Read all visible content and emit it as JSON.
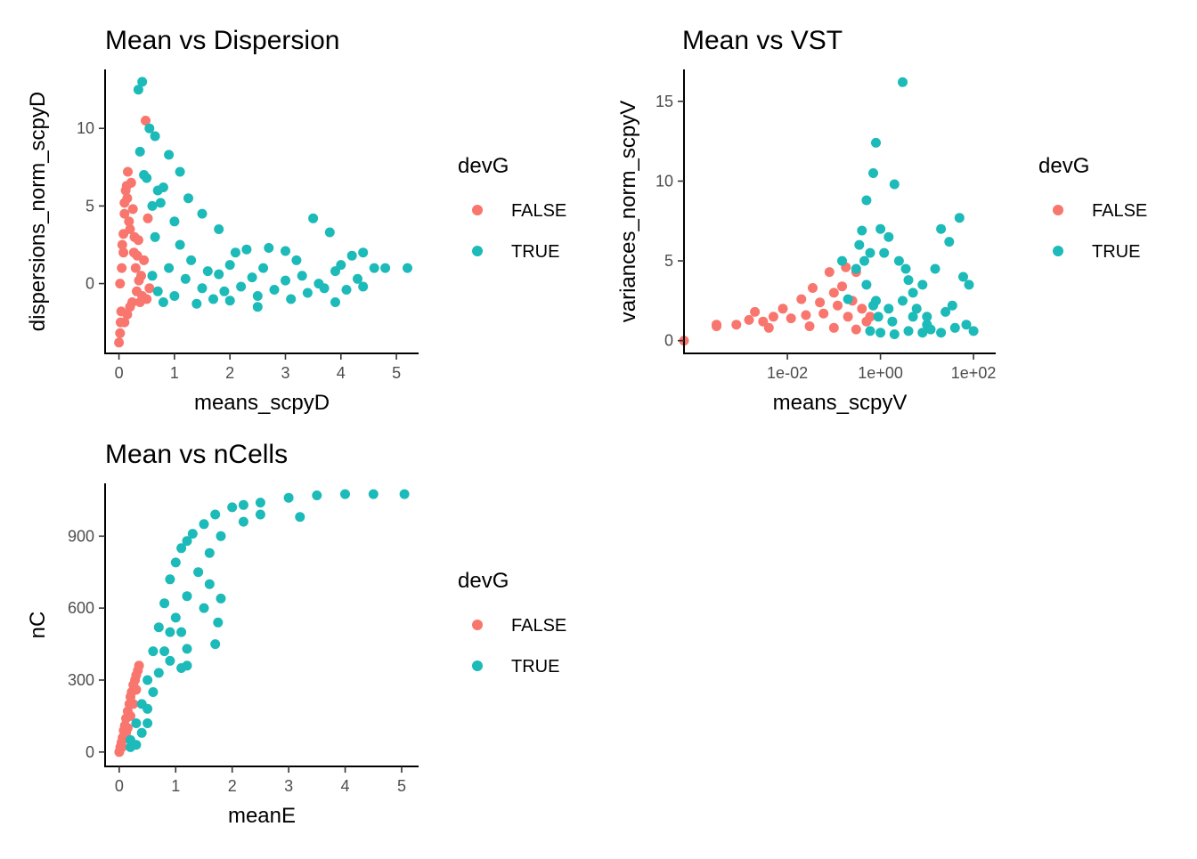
{
  "colors": {
    "FALSE": "#F8766D",
    "TRUE": "#1CBAB8"
  },
  "chart_data": [
    {
      "type": "scatter",
      "title": "Mean vs Dispersion",
      "xlabel": "means_scpyD",
      "ylabel": "dispersions_norm_scpyD",
      "xlim": [
        -0.25,
        5.4
      ],
      "ylim": [
        -4.5,
        13.8
      ],
      "xticks": [
        0,
        1,
        2,
        3,
        4,
        5
      ],
      "xtick_labels": [
        "0",
        "1",
        "2",
        "3",
        "4",
        "5"
      ],
      "yticks": [
        0,
        5,
        10
      ],
      "ytick_labels": [
        "0",
        "5",
        "10"
      ],
      "legend": {
        "title": "devG",
        "entries": [
          "FALSE",
          "TRUE"
        ],
        "position": "right"
      },
      "series": [
        {
          "name": "FALSE",
          "points": [
            [
              0.0,
              -3.8
            ],
            [
              0.02,
              -3.2
            ],
            [
              0.03,
              -2.5
            ],
            [
              0.04,
              -1.8
            ],
            [
              0.02,
              0.0
            ],
            [
              0.05,
              1.0
            ],
            [
              0.06,
              2.5
            ],
            [
              0.08,
              3.2
            ],
            [
              0.1,
              4.5
            ],
            [
              0.1,
              5.2
            ],
            [
              0.12,
              6.0
            ],
            [
              0.14,
              6.3
            ],
            [
              0.15,
              5.5
            ],
            [
              0.16,
              7.2
            ],
            [
              0.18,
              4.0
            ],
            [
              0.2,
              3.5
            ],
            [
              0.22,
              6.5
            ],
            [
              0.25,
              4.8
            ],
            [
              0.27,
              2.0
            ],
            [
              0.3,
              1.0
            ],
            [
              0.32,
              -0.5
            ],
            [
              0.35,
              2.8
            ],
            [
              0.38,
              -1.2
            ],
            [
              0.4,
              0.5
            ],
            [
              0.42,
              -0.8
            ],
            [
              0.45,
              1.5
            ],
            [
              0.5,
              -1.0
            ],
            [
              0.52,
              4.2
            ],
            [
              0.55,
              -0.3
            ],
            [
              0.48,
              10.5
            ],
            [
              0.2,
              -1.5
            ],
            [
              0.15,
              -2.0
            ],
            [
              0.1,
              -2.5
            ],
            [
              0.08,
              2.0
            ],
            [
              0.28,
              3.0
            ],
            [
              0.33,
              1.8
            ],
            [
              0.24,
              -1.2
            ],
            [
              0.36,
              0.2
            ]
          ]
        },
        {
          "name": "TRUE",
          "points": [
            [
              0.35,
              12.5
            ],
            [
              0.42,
              13.0
            ],
            [
              0.55,
              10.0
            ],
            [
              0.38,
              8.5
            ],
            [
              0.45,
              7.0
            ],
            [
              0.65,
              9.5
            ],
            [
              0.7,
              6.0
            ],
            [
              0.8,
              6.2
            ],
            [
              0.9,
              8.3
            ],
            [
              1.1,
              7.2
            ],
            [
              1.25,
              5.5
            ],
            [
              0.5,
              6.8
            ],
            [
              0.6,
              5.0
            ],
            [
              0.75,
              5.2
            ],
            [
              1.0,
              4.0
            ],
            [
              1.5,
              4.5
            ],
            [
              1.8,
              3.5
            ],
            [
              2.1,
              2.0
            ],
            [
              2.3,
              2.2
            ],
            [
              2.7,
              2.3
            ],
            [
              3.0,
              2.1
            ],
            [
              3.2,
              1.5
            ],
            [
              3.5,
              4.2
            ],
            [
              3.8,
              3.3
            ],
            [
              4.0,
              1.2
            ],
            [
              4.2,
              1.8
            ],
            [
              4.4,
              2.0
            ],
            [
              4.6,
              1.0
            ],
            [
              4.8,
              1.0
            ],
            [
              5.2,
              1.0
            ],
            [
              0.6,
              0.5
            ],
            [
              0.7,
              -0.5
            ],
            [
              0.9,
              1.0
            ],
            [
              1.0,
              -0.8
            ],
            [
              1.2,
              0.3
            ],
            [
              1.3,
              1.5
            ],
            [
              1.5,
              -0.3
            ],
            [
              1.6,
              0.8
            ],
            [
              1.7,
              -1.0
            ],
            [
              1.8,
              0.6
            ],
            [
              1.9,
              -0.5
            ],
            [
              2.0,
              1.2
            ],
            [
              2.2,
              -0.2
            ],
            [
              2.4,
              0.4
            ],
            [
              2.5,
              -0.8
            ],
            [
              2.6,
              1.0
            ],
            [
              2.8,
              -0.4
            ],
            [
              3.0,
              0.2
            ],
            [
              3.1,
              -1.0
            ],
            [
              3.3,
              0.5
            ],
            [
              3.4,
              -0.6
            ],
            [
              3.6,
              0.0
            ],
            [
              3.7,
              -0.3
            ],
            [
              3.9,
              0.8
            ],
            [
              4.1,
              -0.4
            ],
            [
              4.3,
              0.3
            ],
            [
              4.4,
              -0.2
            ],
            [
              1.4,
              -1.3
            ],
            [
              2.5,
              -1.5
            ],
            [
              0.8,
              -1.2
            ],
            [
              1.1,
              2.5
            ],
            [
              0.65,
              3.0
            ],
            [
              2.0,
              -1.1
            ],
            [
              3.9,
              -1.2
            ]
          ]
        }
      ]
    },
    {
      "type": "scatter",
      "title": "Mean vs VST",
      "xlabel": "means_scpyV",
      "ylabel": "variances_norm_scpyV",
      "xscale": "log",
      "xlim": [
        6e-05,
        300
      ],
      "ylim": [
        -0.8,
        17
      ],
      "xticks": [
        0.01,
        1,
        100
      ],
      "xtick_labels": [
        "1e-02",
        "1e+00",
        "1e+02"
      ],
      "yticks": [
        0,
        5,
        10,
        15
      ],
      "ytick_labels": [
        "0",
        "5",
        "10",
        "15"
      ],
      "legend": {
        "title": "devG",
        "entries": [
          "FALSE",
          "TRUE"
        ],
        "position": "right"
      },
      "series": [
        {
          "name": "FALSE",
          "points": [
            [
              6e-05,
              0.0
            ],
            [
              0.0003,
              1.0
            ],
            [
              0.0003,
              0.9
            ],
            [
              0.0008,
              1.0
            ],
            [
              0.0015,
              1.3
            ],
            [
              0.002,
              1.8
            ],
            [
              0.003,
              1.2
            ],
            [
              0.005,
              1.5
            ],
            [
              0.008,
              2.0
            ],
            [
              0.012,
              1.4
            ],
            [
              0.02,
              2.6
            ],
            [
              0.025,
              1.6
            ],
            [
              0.035,
              3.3
            ],
            [
              0.05,
              2.4
            ],
            [
              0.06,
              1.7
            ],
            [
              0.08,
              4.3
            ],
            [
              0.1,
              3.0
            ],
            [
              0.12,
              2.2
            ],
            [
              0.15,
              3.4
            ],
            [
              0.18,
              4.6
            ],
            [
              0.2,
              1.5
            ],
            [
              0.25,
              2.5
            ],
            [
              0.3,
              4.3
            ],
            [
              0.4,
              2.0
            ],
            [
              0.5,
              1.2
            ],
            [
              0.6,
              1.5
            ],
            [
              0.03,
              0.9
            ],
            [
              0.1,
              0.8
            ],
            [
              0.3,
              0.7
            ],
            [
              0.004,
              0.8
            ]
          ]
        },
        {
          "name": "TRUE",
          "points": [
            [
              0.5,
              3.5
            ],
            [
              0.5,
              8.8
            ],
            [
              0.7,
              10.5
            ],
            [
              0.8,
              12.4
            ],
            [
              0.6,
              5.5
            ],
            [
              0.4,
              6.9
            ],
            [
              0.3,
              4.5
            ],
            [
              0.35,
              6.0
            ],
            [
              1.0,
              7.0
            ],
            [
              1.2,
              5.5
            ],
            [
              1.5,
              6.5
            ],
            [
              2.0,
              9.8
            ],
            [
              2.5,
              5.0
            ],
            [
              3.0,
              16.2
            ],
            [
              3.5,
              4.5
            ],
            [
              4.0,
              3.8
            ],
            [
              5.0,
              3.0
            ],
            [
              0.45,
              5.0
            ],
            [
              0.15,
              5.0
            ],
            [
              0.2,
              2.6
            ],
            [
              0.8,
              2.5
            ],
            [
              1.5,
              2.0
            ],
            [
              3.0,
              2.5
            ],
            [
              6.0,
              2.0
            ],
            [
              8.0,
              3.5
            ],
            [
              10.0,
              1.5
            ],
            [
              15.0,
              4.5
            ],
            [
              20.0,
              7.0
            ],
            [
              25.0,
              1.8
            ],
            [
              30.0,
              6.2
            ],
            [
              35.0,
              2.2
            ],
            [
              50.0,
              7.7
            ],
            [
              60.0,
              4.0
            ],
            [
              70.0,
              1.0
            ],
            [
              80.0,
              3.5
            ],
            [
              100.0,
              0.6
            ],
            [
              0.6,
              0.6
            ],
            [
              1.0,
              0.5
            ],
            [
              2.0,
              0.4
            ],
            [
              4.0,
              0.6
            ],
            [
              8.0,
              0.5
            ],
            [
              12.0,
              0.7
            ],
            [
              20.0,
              0.5
            ],
            [
              40.0,
              0.8
            ],
            [
              0.9,
              1.5
            ],
            [
              1.8,
              1.2
            ],
            [
              5.0,
              1.5
            ],
            [
              10.0,
              1.0
            ],
            [
              0.7,
              2.2
            ]
          ]
        }
      ]
    },
    {
      "type": "scatter",
      "title": "Mean vs nCells",
      "xlabel": "meanE",
      "ylabel": "nC",
      "xlim": [
        -0.25,
        5.3
      ],
      "ylim": [
        -60,
        1120
      ],
      "xticks": [
        0,
        1,
        2,
        3,
        4,
        5
      ],
      "xtick_labels": [
        "0",
        "1",
        "2",
        "3",
        "4",
        "5"
      ],
      "yticks": [
        0,
        300,
        600,
        900
      ],
      "ytick_labels": [
        "0",
        "300",
        "600",
        "900"
      ],
      "legend": {
        "title": "devG",
        "entries": [
          "FALSE",
          "TRUE"
        ],
        "position": "right"
      },
      "series": [
        {
          "name": "FALSE",
          "points": [
            [
              0.0,
              0
            ],
            [
              0.02,
              20
            ],
            [
              0.04,
              40
            ],
            [
              0.06,
              60
            ],
            [
              0.08,
              90
            ],
            [
              0.1,
              110
            ],
            [
              0.12,
              140
            ],
            [
              0.15,
              170
            ],
            [
              0.18,
              200
            ],
            [
              0.2,
              230
            ],
            [
              0.22,
              250
            ],
            [
              0.25,
              280
            ],
            [
              0.28,
              300
            ],
            [
              0.3,
              320
            ],
            [
              0.33,
              340
            ],
            [
              0.35,
              360
            ],
            [
              0.1,
              60
            ],
            [
              0.15,
              100
            ],
            [
              0.2,
              150
            ],
            [
              0.25,
              200
            ],
            [
              0.3,
              260
            ],
            [
              0.05,
              20
            ],
            [
              0.12,
              80
            ]
          ]
        },
        {
          "name": "TRUE",
          "points": [
            [
              0.2,
              50
            ],
            [
              0.3,
              120
            ],
            [
              0.4,
              200
            ],
            [
              0.5,
              300
            ],
            [
              0.6,
              420
            ],
            [
              0.7,
              520
            ],
            [
              0.8,
              620
            ],
            [
              0.9,
              720
            ],
            [
              1.0,
              790
            ],
            [
              1.1,
              850
            ],
            [
              1.2,
              880
            ],
            [
              1.3,
              910
            ],
            [
              1.5,
              950
            ],
            [
              1.7,
              990
            ],
            [
              2.0,
              1020
            ],
            [
              2.2,
              1030
            ],
            [
              2.5,
              1040
            ],
            [
              3.0,
              1060
            ],
            [
              3.5,
              1070
            ],
            [
              4.0,
              1075
            ],
            [
              4.5,
              1075
            ],
            [
              5.05,
              1075
            ],
            [
              0.5,
              180
            ],
            [
              0.6,
              250
            ],
            [
              0.7,
              330
            ],
            [
              0.8,
              420
            ],
            [
              0.9,
              500
            ],
            [
              1.0,
              560
            ],
            [
              1.2,
              650
            ],
            [
              1.4,
              750
            ],
            [
              1.6,
              830
            ],
            [
              1.8,
              900
            ],
            [
              2.2,
              960
            ],
            [
              2.5,
              990
            ],
            [
              3.2,
              980
            ],
            [
              1.7,
              450
            ],
            [
              1.75,
              540
            ],
            [
              1.8,
              640
            ],
            [
              1.5,
              600
            ],
            [
              1.6,
              700
            ],
            [
              1.2,
              430
            ],
            [
              1.1,
              500
            ],
            [
              1.2,
              360
            ],
            [
              1.1,
              350
            ],
            [
              0.9,
              380
            ],
            [
              0.5,
              120
            ],
            [
              0.4,
              80
            ],
            [
              0.3,
              30
            ],
            [
              0.2,
              20
            ]
          ]
        }
      ]
    }
  ]
}
